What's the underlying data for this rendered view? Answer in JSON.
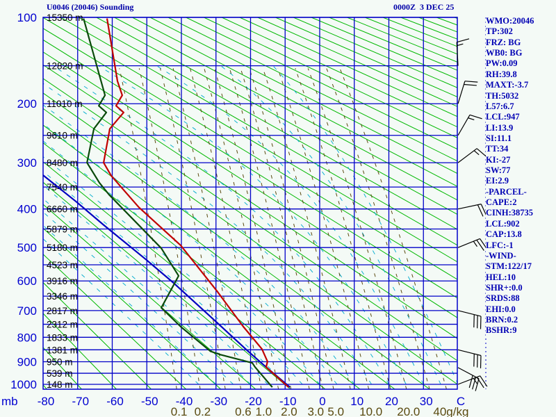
{
  "header": {
    "title": "U0046 (20046) Sounding",
    "datetime": "0000Z  3 DEC 25"
  },
  "panel": {
    "lines": [
      "WMO:20046",
      "TP:302",
      "FRZ: BG",
      "WB0: BG",
      "PW:0.09",
      "RH:39.8",
      "MAXT:-3.7",
      "TH:5032",
      "L57:6.7",
      "LCL:947",
      "LI:13.9",
      "SI:11.1",
      "TT:34",
      "KI:-27",
      "SW:77",
      "EI:2.9",
      "-PARCEL-",
      "CAPE:2",
      "CINH:38735",
      "LCL:902",
      "CAP:13.8",
      "LFC:-1",
      "-WIND-",
      "STM:122/17",
      "HEL:10",
      "SHR+:0.0",
      "SRDS:88",
      "EHI:0.0",
      "BRN:0.2",
      "BSHR:9"
    ]
  },
  "colors": {
    "background": "#f4faf6",
    "grid": "#0000c8",
    "dry_adiabat": "#00b800",
    "moist_adiabat": "#10b0d0",
    "mixing_ratio": "#5a4a10",
    "temperature": "#c00000",
    "dewpoint": "#0b4a0b",
    "parcel": "#0000c0",
    "wind": "#000000"
  },
  "chart_data": {
    "type": "line",
    "diagram": "stuve",
    "title": "U0046 (20046) Sounding",
    "subtitle": "0000Z  3 DEC 25",
    "pressure_range_mb": [
      100,
      1020
    ],
    "temperature_range_c": [
      -80,
      40
    ],
    "pressure_labels": [
      "100",
      "200",
      "300",
      "400",
      "500",
      "600",
      "700",
      "800",
      "900",
      "1000"
    ],
    "pressure_label_values": [
      100,
      200,
      300,
      400,
      500,
      600,
      700,
      800,
      900,
      1000
    ],
    "pressure_unit_label": "mb",
    "temperature_labels": [
      "-80",
      "-70",
      "-60",
      "-50",
      "-40",
      "-30",
      "-20",
      "-10",
      "0",
      "10",
      "20",
      "30",
      "C"
    ],
    "temperature_label_values": [
      -80,
      -70,
      -60,
      -50,
      -40,
      -30,
      -20,
      -10,
      0,
      10,
      20,
      30,
      40
    ],
    "height_labels": [
      {
        "p": 100,
        "text": "15350 m"
      },
      {
        "p": 150,
        "text": "12820 m"
      },
      {
        "p": 200,
        "text": "11010 m"
      },
      {
        "p": 250,
        "text": "9610 m"
      },
      {
        "p": 300,
        "text": "8480 m"
      },
      {
        "p": 350,
        "text": "7540 m"
      },
      {
        "p": 400,
        "text": "6660 m"
      },
      {
        "p": 450,
        "text": "5879 m"
      },
      {
        "p": 500,
        "text": "5180 m"
      },
      {
        "p": 550,
        "text": "4523 m"
      },
      {
        "p": 600,
        "text": "3916 m"
      },
      {
        "p": 650,
        "text": "3346 m"
      },
      {
        "p": 700,
        "text": "2817 m"
      },
      {
        "p": 750,
        "text": "2312 m"
      },
      {
        "p": 800,
        "text": "1833 m"
      },
      {
        "p": 850,
        "text": "1381 m"
      },
      {
        "p": 900,
        "text": "950 m"
      },
      {
        "p": 950,
        "text": "539 m"
      },
      {
        "p": 1000,
        "text": "148 m"
      }
    ],
    "mixing_ratio_lines_gkg": [
      0.1,
      0.2,
      0.4,
      0.6,
      1.0,
      1.5,
      2.0,
      3.0,
      4.0,
      5.0,
      7.0,
      10.0,
      15.0,
      20.0,
      30.0,
      40.0
    ],
    "mixing_ratio_labels": [
      {
        "w": 0.1,
        "text": "0.1"
      },
      {
        "w": 0.2,
        "text": "0.2"
      },
      {
        "w": 0.6,
        "text": "0.6"
      },
      {
        "w": 1.0,
        "text": "1.0"
      },
      {
        "w": 2.0,
        "text": "2.0"
      },
      {
        "w": 3.0,
        "text": "3.0"
      },
      {
        "w": 5.0,
        "text": "5.0"
      },
      {
        "w": 10.0,
        "text": "10.0"
      },
      {
        "w": 20.0,
        "text": "20.0"
      },
      {
        "w": 40.0,
        "text": "40g/kg"
      }
    ],
    "series": {
      "temperature": [
        [
          101,
          -61.5
        ],
        [
          169,
          -58.5
        ],
        [
          188,
          -57.1
        ],
        [
          203,
          -58.9
        ],
        [
          213,
          -56.7
        ],
        [
          239,
          -60.7
        ],
        [
          300,
          -62.5
        ],
        [
          326,
          -60.3
        ],
        [
          396,
          -52.3
        ],
        [
          494,
          -40.2
        ],
        [
          636,
          -29.5
        ],
        [
          759,
          -22.1
        ],
        [
          847,
          -16.7
        ],
        [
          899,
          -15.1
        ],
        [
          923,
          -15.5
        ],
        [
          1013,
          -9.0
        ]
      ],
      "dewpoint": [
        [
          101,
          -68.3
        ],
        [
          188,
          -62.1
        ],
        [
          203,
          -63.9
        ],
        [
          213,
          -61.7
        ],
        [
          239,
          -65.3
        ],
        [
          300,
          -67.3
        ],
        [
          341,
          -63.7
        ],
        [
          367,
          -60.9
        ],
        [
          502,
          -45.8
        ],
        [
          584,
          -40.8
        ],
        [
          690,
          -45.8
        ],
        [
          759,
          -40.2
        ],
        [
          856,
          -31.6
        ],
        [
          870,
          -28.7
        ],
        [
          905,
          -19.5
        ],
        [
          923,
          -18.7
        ],
        [
          1013,
          -13.7
        ]
      ],
      "parcel": [
        [
          325,
          -80.0
        ],
        [
          383,
          -70.4
        ],
        [
          441,
          -62.3
        ],
        [
          534,
          -50.3
        ],
        [
          607,
          -42.2
        ],
        [
          738,
          -30.2
        ],
        [
          856,
          -20.7
        ],
        [
          923,
          -15.5
        ],
        [
          1013,
          -8.6
        ]
      ]
    },
    "winds": [
      {
        "p": 150,
        "dir_deg": 357,
        "speed_kt": 15
      },
      {
        "p": 200,
        "dir_deg": 17,
        "speed_kt": 20
      },
      {
        "p": 250,
        "dir_deg": 30,
        "speed_kt": 15
      },
      {
        "p": 300,
        "dir_deg": 53,
        "speed_kt": 15
      },
      {
        "p": 400,
        "dir_deg": 78,
        "speed_kt": 20
      },
      {
        "p": 500,
        "dir_deg": 68,
        "speed_kt": 25
      },
      {
        "p": 700,
        "dir_deg": 104,
        "speed_kt": 30
      },
      {
        "p": 850,
        "dir_deg": 104,
        "speed_kt": 30
      },
      {
        "p": 925,
        "dir_deg": 118,
        "speed_kt": 30
      },
      {
        "p": 1000,
        "dir_deg": 69,
        "speed_kt": 25
      }
    ]
  }
}
